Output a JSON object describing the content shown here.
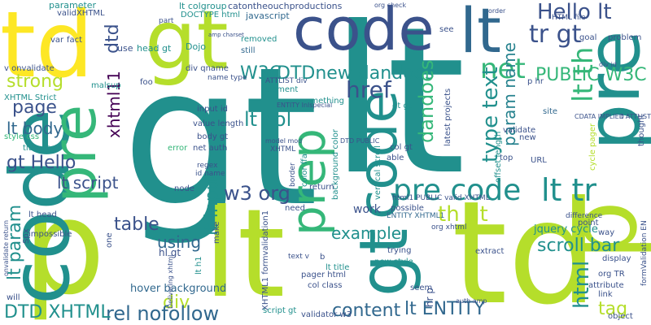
{
  "palette": {
    "teal": "#21908d",
    "green": "#5ec962",
    "lime": "#b5de2b",
    "yellow": "#fde725",
    "blue": "#3b528b",
    "navy": "#31688e",
    "purple": "#472d7b",
    "dark": "#440154",
    "aqua": "#26828e",
    "mint": "#35b779",
    "spring": "#6ece58",
    "chartreuse": "#90d743"
  },
  "words": [
    {
      "text": "gt",
      "color": "teal"
    },
    {
      "text": "lt",
      "color": "teal"
    },
    {
      "text": "td",
      "color": "yellow"
    },
    {
      "text": "td",
      "color": "lime"
    },
    {
      "text": "gt",
      "color": "lime"
    },
    {
      "text": "code",
      "color": "blue"
    },
    {
      "text": "lt",
      "color": "navy"
    },
    {
      "text": "pre",
      "color": "teal"
    },
    {
      "text": "p",
      "color": "lime"
    },
    {
      "text": "p",
      "color": "lime"
    },
    {
      "text": "lt",
      "color": "lime"
    },
    {
      "text": "code",
      "color": "teal"
    },
    {
      "text": "pre",
      "color": "mint"
    },
    {
      "text": "gt",
      "color": "teal"
    },
    {
      "text": "code",
      "color": "teal"
    },
    {
      "text": "prep",
      "color": "mint"
    },
    {
      "text": "pre code",
      "color": "teal"
    },
    {
      "text": "lt tr",
      "color": "teal"
    },
    {
      "text": "Hello lt",
      "color": "blue"
    },
    {
      "text": "tr gt",
      "color": "blue"
    },
    {
      "text": "net",
      "color": "mint"
    },
    {
      "text": "href",
      "color": "blue"
    },
    {
      "text": "W3C",
      "color": "teal"
    },
    {
      "text": "DTDnew dandoes",
      "color": "teal"
    },
    {
      "text": "PUBLIC W3C",
      "color": "mint"
    },
    {
      "text": "xhtml11",
      "color": "dark"
    },
    {
      "text": "dtd",
      "color": "blue"
    },
    {
      "text": "lt th",
      "color": "mint"
    },
    {
      "text": "strong",
      "color": "lime"
    },
    {
      "text": "page",
      "color": "blue"
    },
    {
      "text": "lt body",
      "color": "navy"
    },
    {
      "text": "gt Hello",
      "color": "blue"
    },
    {
      "text": "lt col",
      "color": "teal"
    },
    {
      "text": "type text",
      "color": "teal"
    },
    {
      "text": "param name",
      "color": "aqua"
    },
    {
      "text": "dandoes",
      "color": "mint"
    },
    {
      "text": "example",
      "color": "teal"
    },
    {
      "text": "w3 org",
      "color": "blue"
    },
    {
      "text": "lt script",
      "color": "blue"
    },
    {
      "text": "lt param",
      "color": "teal"
    },
    {
      "text": "th gt",
      "color": "lime"
    },
    {
      "text": "html",
      "color": "teal"
    },
    {
      "text": "table",
      "color": "blue"
    },
    {
      "text": "using",
      "color": "navy"
    },
    {
      "text": "lt input",
      "color": "teal"
    },
    {
      "text": "div",
      "color": "lime"
    },
    {
      "text": "rel nofollow",
      "color": "navy"
    },
    {
      "text": "DTD XHTML",
      "color": "teal"
    },
    {
      "text": "content",
      "color": "navy"
    },
    {
      "text": "lt ENTITY",
      "color": "navy"
    },
    {
      "text": "tag",
      "color": "lime"
    },
    {
      "text": "scroll bar",
      "color": "teal"
    },
    {
      "text": "work",
      "color": "blue"
    },
    {
      "text": "lt h1",
      "color": "teal"
    },
    {
      "text": "lt title",
      "color": "teal"
    },
    {
      "text": "hover background",
      "color": "navy"
    },
    {
      "text": "jquery cycle",
      "color": "teal"
    },
    {
      "text": "hl gt",
      "color": "blue"
    },
    {
      "text": "lt colgroup",
      "color": "teal"
    },
    {
      "text": "DOCTYPE html",
      "color": "teal"
    },
    {
      "text": "catontheouchproductions",
      "color": "blue"
    },
    {
      "text": "javascript",
      "color": "navy"
    },
    {
      "text": "still",
      "color": "navy"
    },
    {
      "text": "parameter",
      "color": "teal"
    },
    {
      "text": "validXHTML",
      "color": "blue"
    },
    {
      "text": "head gt",
      "color": "teal"
    },
    {
      "text": "use",
      "color": "blue"
    },
    {
      "text": "Dojo",
      "color": "teal"
    },
    {
      "text": "div qname",
      "color": "blue"
    },
    {
      "text": "element",
      "color": "teal"
    },
    {
      "text": "v onvalidate",
      "color": "blue"
    },
    {
      "text": "XHTML Strict",
      "color": "teal"
    },
    {
      "text": "style css",
      "color": "mint"
    },
    {
      "text": "title gt",
      "color": "teal"
    },
    {
      "text": "input id",
      "color": "blue"
    },
    {
      "text": "value length",
      "color": "blue"
    },
    {
      "text": "body gt",
      "color": "blue"
    },
    {
      "text": "net auth",
      "color": "blue"
    },
    {
      "text": "error",
      "color": "mint"
    },
    {
      "text": "regex",
      "color": "blue"
    },
    {
      "text": "id name",
      "color": "blue"
    },
    {
      "text": "node",
      "color": "blue"
    },
    {
      "text": "something",
      "color": "teal"
    },
    {
      "text": "gt gt",
      "color": "teal"
    },
    {
      "text": "col gt",
      "color": "blue"
    },
    {
      "text": "validate",
      "color": "blue"
    },
    {
      "text": "new",
      "color": "blue"
    },
    {
      "text": "site",
      "color": "navy"
    },
    {
      "text": "URL",
      "color": "blue"
    },
    {
      "text": "top",
      "color": "blue"
    },
    {
      "text": "able",
      "color": "blue"
    },
    {
      "text": "need",
      "color": "blue"
    },
    {
      "text": "possible",
      "color": "blue"
    },
    {
      "text": "org xhtml",
      "color": "blue"
    },
    {
      "text": "ENTITY XHTML1",
      "color": "navy"
    },
    {
      "text": "trying",
      "color": "blue"
    },
    {
      "text": "new style",
      "color": "teal"
    },
    {
      "text": "extract",
      "color": "blue"
    },
    {
      "text": "point",
      "color": "blue"
    },
    {
      "text": "difference",
      "color": "blue"
    },
    {
      "text": "way",
      "color": "blue"
    },
    {
      "text": "display",
      "color": "blue"
    },
    {
      "text": "org TR",
      "color": "blue"
    },
    {
      "text": "attribute",
      "color": "blue"
    },
    {
      "text": "link",
      "color": "blue"
    },
    {
      "text": "object",
      "color": "blue"
    },
    {
      "text": "seem",
      "color": "blue"
    },
    {
      "text": "col class",
      "color": "blue"
    },
    {
      "text": "pager html",
      "color": "blue"
    },
    {
      "text": "script gt",
      "color": "teal"
    },
    {
      "text": "validator w3",
      "color": "blue"
    },
    {
      "text": "problem",
      "color": "blue"
    },
    {
      "text": "goal",
      "color": "blue"
    },
    {
      "text": "HTML file",
      "color": "blue"
    },
    {
      "text": "see",
      "color": "blue"
    },
    {
      "text": "var",
      "color": "blue"
    },
    {
      "text": "fact",
      "color": "blue"
    },
    {
      "text": "foo",
      "color": "blue"
    },
    {
      "text": "removed",
      "color": "teal"
    },
    {
      "text": "impossible",
      "color": "blue"
    },
    {
      "text": "will",
      "color": "blue"
    },
    {
      "text": "lt head",
      "color": "blue"
    },
    {
      "text": "ATTLIST div",
      "color": "blue"
    },
    {
      "text": "name type",
      "color": "blue"
    },
    {
      "text": "latest projects",
      "color": "blue"
    },
    {
      "text": "thought",
      "color": "blue"
    },
    {
      "text": "make",
      "color": "blue"
    },
    {
      "text": "one",
      "color": "blue"
    },
    {
      "text": "b",
      "color": "blue"
    },
    {
      "text": "text v",
      "color": "blue"
    },
    {
      "text": "hr p",
      "color": "blue"
    },
    {
      "text": "p hr",
      "color": "blue"
    },
    {
      "text": "ENTITY Inlspecial",
      "color": "blue"
    },
    {
      "text": "XHTML1 formvalidation1",
      "color": "blue"
    },
    {
      "text": "border",
      "color": "blue"
    },
    {
      "text": "color ffa",
      "color": "teal"
    },
    {
      "text": "vertical scroll",
      "color": "teal"
    },
    {
      "text": "offset length",
      "color": "teal"
    },
    {
      "text": "background color",
      "color": "teal"
    },
    {
      "text": "html1 PUBLIC valid XHTML",
      "color": "blue"
    },
    {
      "text": "CDATA IMPLIED",
      "color": "blue"
    },
    {
      "text": "malsup",
      "color": "teal"
    },
    {
      "text": "cycle pager",
      "color": "lime"
    },
    {
      "text": "formValidation EN",
      "color": "blue"
    },
    {
      "text": "return",
      "color": "blue"
    },
    {
      "text": "model mod",
      "color": "blue"
    },
    {
      "text": "DTD PUBLIC",
      "color": "blue"
    },
    {
      "text": "XHTML",
      "color": "blue"
    },
    {
      "text": "Delivering xhtml",
      "color": "blue"
    },
    {
      "text": "auth amp",
      "color": "blue"
    },
    {
      "text": "org check",
      "color": "blue"
    },
    {
      "text": "order",
      "color": "blue"
    },
    {
      "text": "part",
      "color": "blue"
    },
    {
      "text": "div id",
      "color": "blue"
    },
    {
      "text": "lt ATTLIST",
      "color": "blue"
    },
    {
      "text": "Spx",
      "color": "blue"
    },
    {
      "text": "onvalidate return",
      "color": "blue"
    },
    {
      "text": "amp charset",
      "color": "blue"
    }
  ]
}
